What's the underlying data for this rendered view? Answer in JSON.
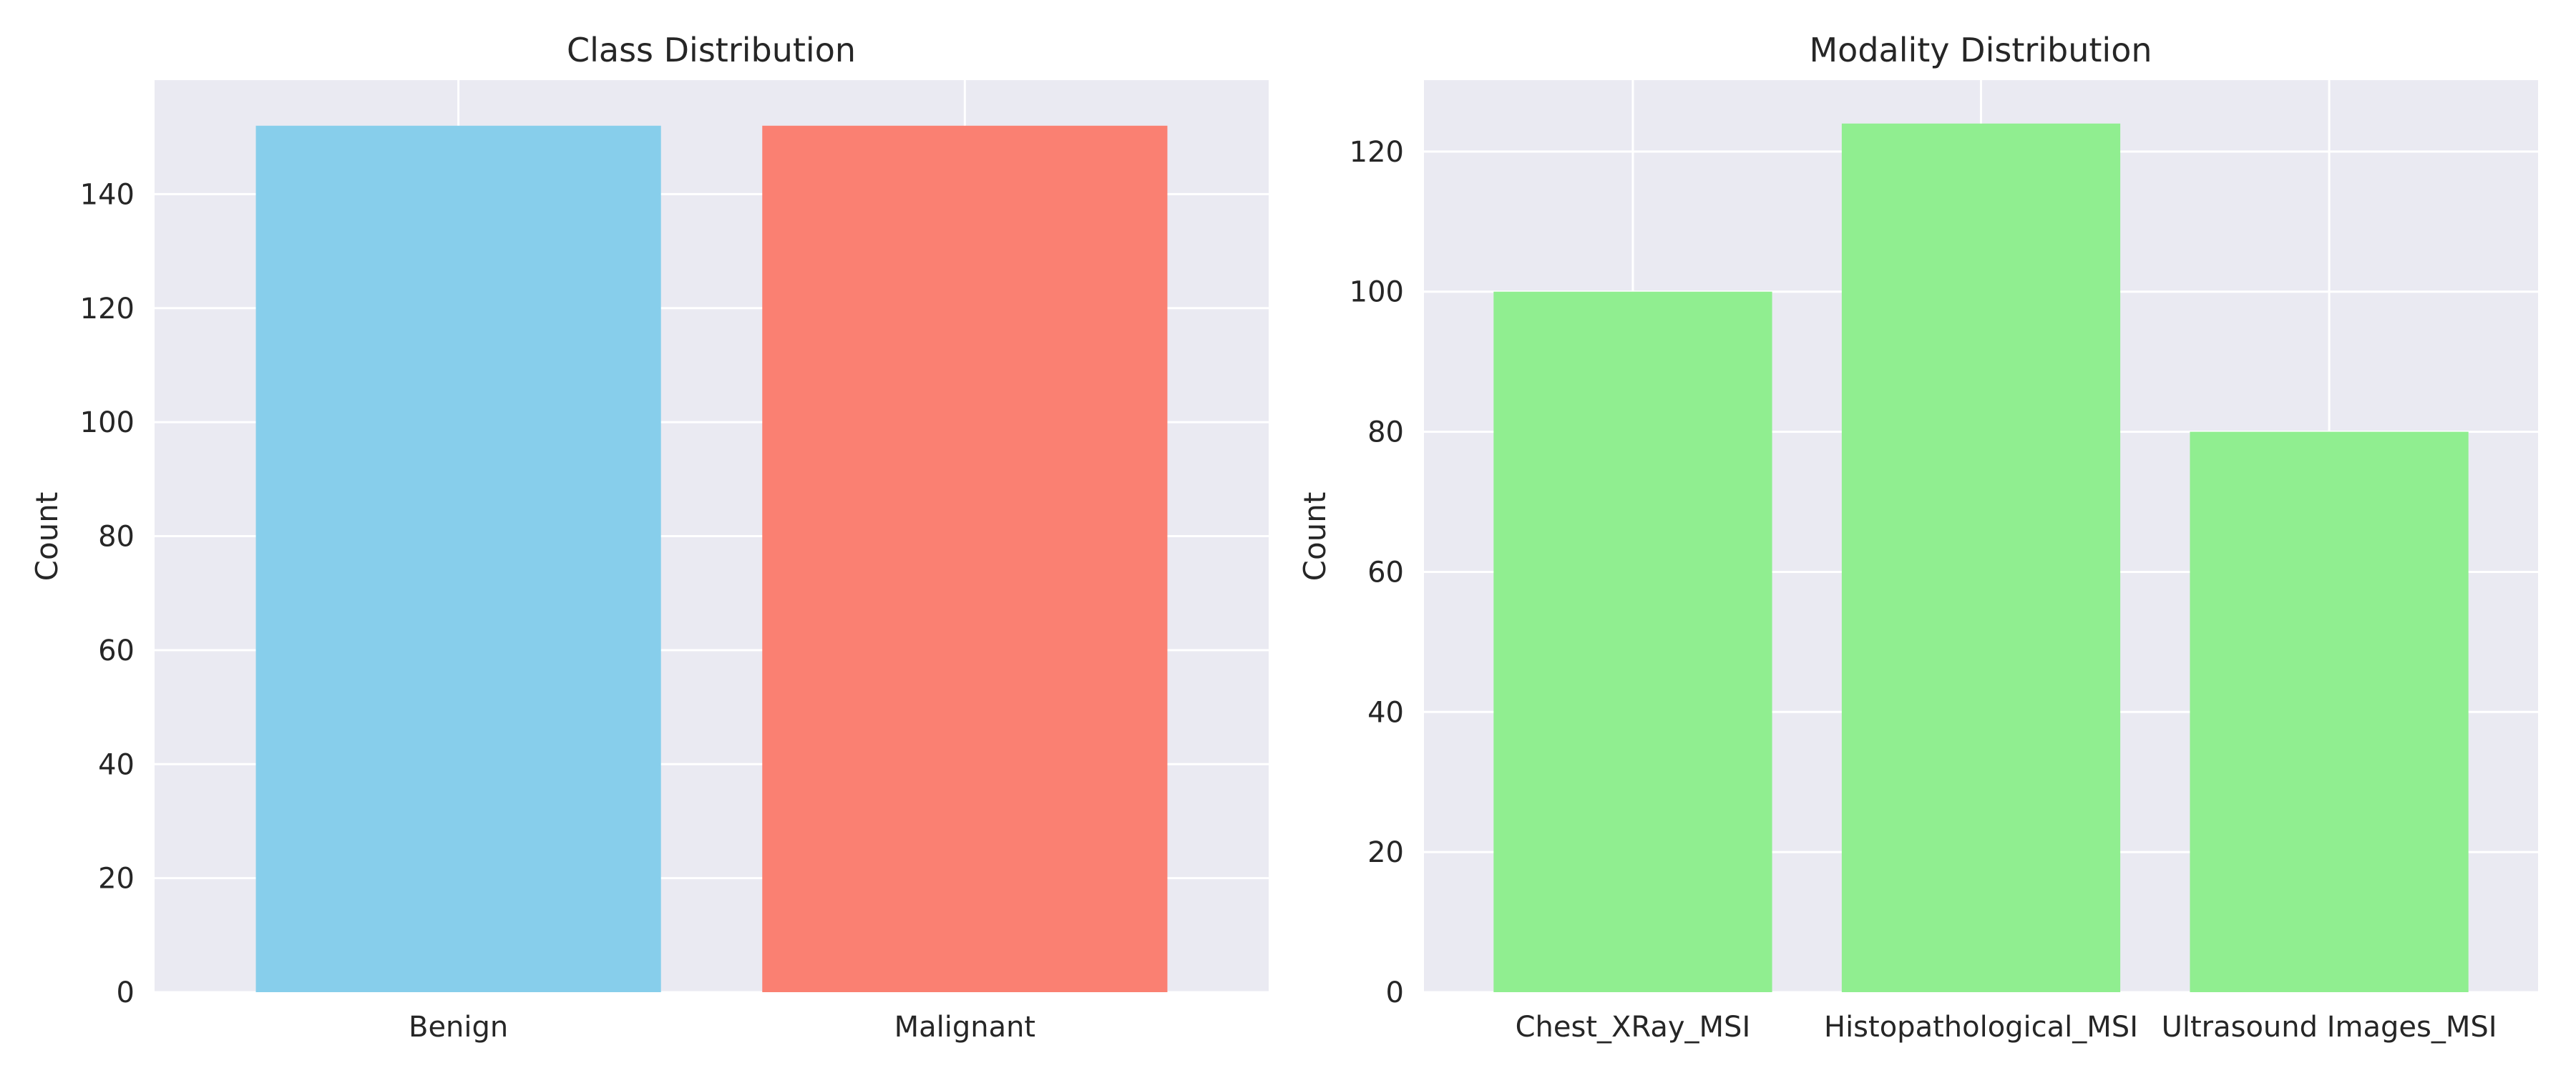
{
  "chart_data": [
    {
      "type": "bar",
      "title": "Class Distribution",
      "xlabel": "",
      "ylabel": "Count",
      "categories": [
        "Benign",
        "Malignant"
      ],
      "values": [
        152,
        152
      ],
      "colors": [
        "#87CEEB",
        "#FA8072"
      ],
      "ylim": [
        0,
        160
      ],
      "yticks": [
        0,
        20,
        40,
        60,
        80,
        100,
        120,
        140
      ],
      "grid": true,
      "background": "#EAEAF2"
    },
    {
      "type": "bar",
      "title": "Modality Distribution",
      "xlabel": "",
      "ylabel": "Count",
      "categories": [
        "Chest_XRay_MSI",
        "Histopathological_MSI",
        "Ultrasound Images_MSI"
      ],
      "values": [
        100,
        124,
        80
      ],
      "colors": [
        "#90EE90",
        "#90EE90",
        "#90EE90"
      ],
      "ylim": [
        0,
        130.2
      ],
      "yticks": [
        0,
        20,
        40,
        60,
        80,
        100,
        120
      ],
      "grid": true,
      "background": "#EAEAF2"
    }
  ]
}
